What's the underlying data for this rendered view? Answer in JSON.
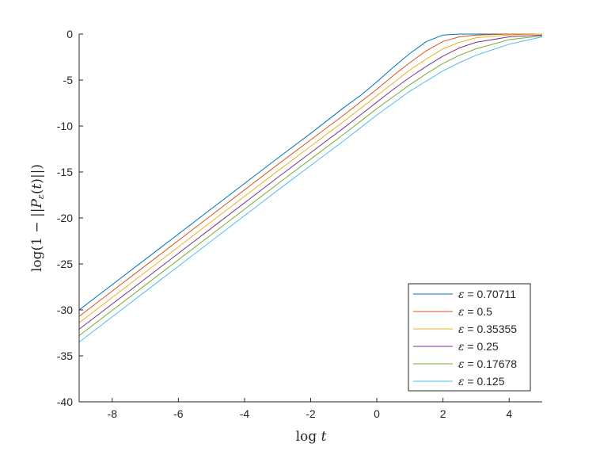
{
  "chart_data": {
    "type": "line",
    "xlabel": "log t",
    "ylabel": "log(1 − ||P_ε(t)||)",
    "xlim": [
      -9,
      5
    ],
    "ylim": [
      -40,
      0
    ],
    "xticks": [
      -8,
      -6,
      -4,
      -2,
      0,
      2,
      4
    ],
    "yticks": [
      0,
      -5,
      -10,
      -15,
      -20,
      -25,
      -30,
      -35,
      -40
    ],
    "grid": false,
    "legend_position": "bottom-right",
    "series": [
      {
        "name": "ε = 0.70711",
        "label_value": "0.70711",
        "epsilon": 0.70711,
        "color": "#0072BD",
        "x": [
          -9,
          -7,
          -5,
          -3,
          -2,
          -1,
          -0.5,
          0,
          0.5,
          1,
          1.5,
          2,
          2.5,
          3,
          4,
          5
        ],
        "y": [
          -30.0,
          -24.5,
          -19.0,
          -13.5,
          -10.8,
          -8.0,
          -6.7,
          -5.2,
          -3.6,
          -2.1,
          -0.8,
          -0.1,
          0,
          0,
          0,
          0
        ]
      },
      {
        "name": "ε = 0.5",
        "label_value": "0.5",
        "epsilon": 0.5,
        "color": "#D95319",
        "x": [
          -9,
          -7,
          -5,
          -3,
          -2,
          -1,
          -0.5,
          0,
          0.5,
          1,
          1.5,
          2,
          2.5,
          3,
          4,
          5
        ],
        "y": [
          -30.7,
          -25.2,
          -19.7,
          -14.2,
          -11.5,
          -8.8,
          -7.4,
          -6.0,
          -4.5,
          -3.1,
          -1.8,
          -0.8,
          -0.3,
          -0.1,
          0,
          0
        ]
      },
      {
        "name": "ε = 0.35355",
        "label_value": "0.35355",
        "epsilon": 0.35355,
        "color": "#EDB120",
        "x": [
          -9,
          -7,
          -5,
          -3,
          -2,
          -1,
          -0.5,
          0,
          0.5,
          1,
          1.5,
          2,
          2.5,
          3,
          4,
          5
        ],
        "y": [
          -31.4,
          -25.9,
          -20.4,
          -14.9,
          -12.2,
          -9.5,
          -8.1,
          -6.7,
          -5.3,
          -3.9,
          -2.7,
          -1.6,
          -0.9,
          -0.4,
          -0.1,
          0
        ]
      },
      {
        "name": "ε = 0.25",
        "label_value": "0.25",
        "epsilon": 0.25,
        "color": "#7E2F8E",
        "x": [
          -9,
          -7,
          -5,
          -3,
          -2,
          -1,
          -0.5,
          0,
          0.5,
          1,
          1.5,
          2,
          2.5,
          3,
          4,
          5
        ],
        "y": [
          -32.1,
          -26.6,
          -21.1,
          -15.6,
          -12.9,
          -10.2,
          -8.8,
          -7.4,
          -6.0,
          -4.7,
          -3.5,
          -2.4,
          -1.5,
          -0.9,
          -0.3,
          -0.1
        ]
      },
      {
        "name": "ε = 0.17678",
        "label_value": "0.17678",
        "epsilon": 0.17678,
        "color": "#77AC30",
        "x": [
          -9,
          -7,
          -5,
          -3,
          -2,
          -1,
          -0.5,
          0,
          0.5,
          1,
          1.5,
          2,
          2.5,
          3,
          4,
          5
        ],
        "y": [
          -32.8,
          -27.3,
          -21.8,
          -16.3,
          -13.6,
          -10.9,
          -9.5,
          -8.1,
          -6.8,
          -5.5,
          -4.3,
          -3.2,
          -2.3,
          -1.6,
          -0.6,
          -0.2
        ]
      },
      {
        "name": "ε = 0.125",
        "label_value": "0.125",
        "epsilon": 0.125,
        "color": "#4DBEEE",
        "x": [
          -9,
          -7,
          -5,
          -3,
          -2,
          -1,
          -0.5,
          0,
          0.5,
          1,
          1.5,
          2,
          2.5,
          3,
          4,
          5
        ],
        "y": [
          -33.5,
          -28.0,
          -22.5,
          -17.0,
          -14.3,
          -11.6,
          -10.2,
          -8.8,
          -7.5,
          -6.2,
          -5.1,
          -4.0,
          -3.1,
          -2.3,
          -1.1,
          -0.3
        ]
      }
    ]
  }
}
